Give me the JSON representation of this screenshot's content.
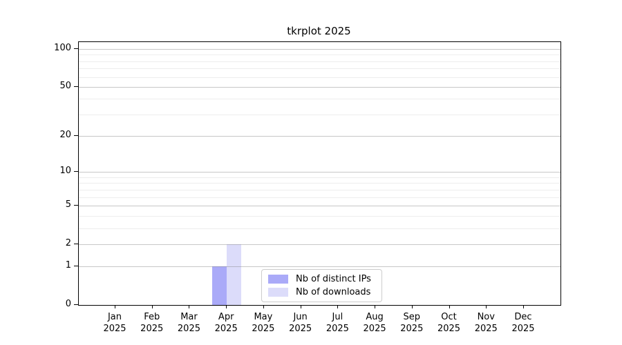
{
  "title": "tkrplot 2025",
  "chart_data": {
    "type": "bar",
    "title": "tkrplot 2025",
    "categories": [
      "Jan",
      "Feb",
      "Mar",
      "Apr",
      "May",
      "Jun",
      "Jul",
      "Aug",
      "Sep",
      "Oct",
      "Nov",
      "Dec"
    ],
    "category_year": "2025",
    "series": [
      {
        "name": "Nb of distinct IPs",
        "color": "#aaaaf8",
        "values": [
          0,
          0,
          0,
          1,
          0,
          0,
          0,
          0,
          0,
          0,
          0,
          0
        ]
      },
      {
        "name": "Nb of downloads",
        "color": "#dcdcfa",
        "values": [
          0,
          0,
          0,
          2,
          0,
          0,
          0,
          0,
          0,
          0,
          0,
          0
        ]
      }
    ],
    "xlabel": "",
    "ylabel": "",
    "yscale": "log1p",
    "ylim": [
      0,
      113
    ],
    "y_ticks": [
      0,
      1,
      2,
      5,
      10,
      20,
      50,
      100
    ],
    "y_minor_gridlines": [
      3,
      4,
      6,
      7,
      8,
      9,
      30,
      40,
      60,
      70,
      80,
      90
    ],
    "y_major_gridlines": [
      1,
      2,
      5,
      10,
      20,
      50,
      100
    ],
    "grid": true,
    "legend_position": "inside-bottom-center",
    "legend_items": [
      "Nb of distinct IPs",
      "Nb of downloads"
    ]
  },
  "colors": {
    "background": "#ffffff",
    "axis": "#000000",
    "grid_major": "#c6c6c6",
    "grid_minor": "#ececec",
    "legend_border": "#cccccc"
  }
}
